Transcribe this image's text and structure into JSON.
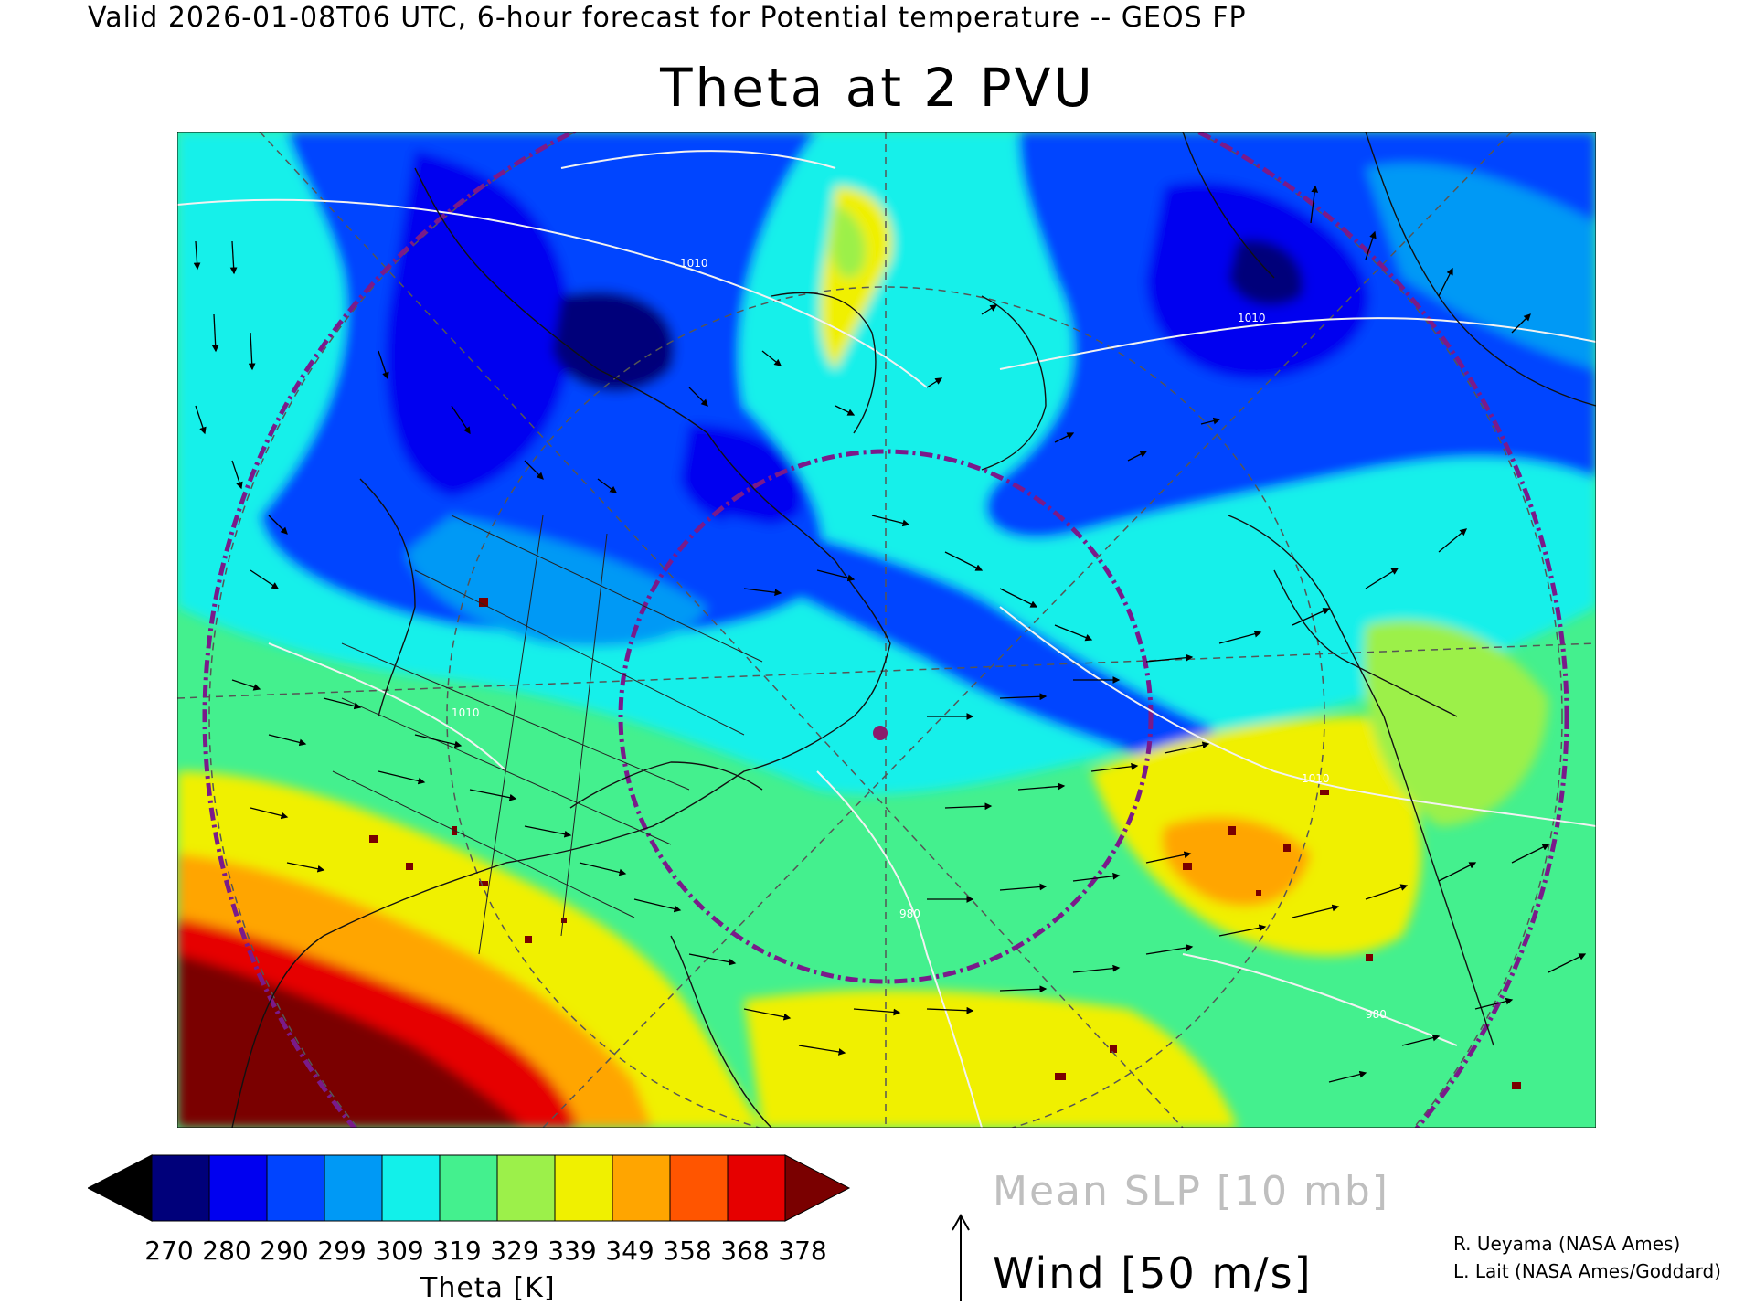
{
  "header": "Valid 2026-01-08T06 UTC, 6-hour forecast for Potential temperature -- GEOS FP",
  "title": "Theta at 2 PVU",
  "colorbar": {
    "ticks": [
      "270",
      "280",
      "290",
      "299",
      "309",
      "319",
      "329",
      "339",
      "349",
      "358",
      "368",
      "378"
    ],
    "title": "Theta [K]",
    "colors": [
      "#000000",
      "#00007a",
      "#0000f0",
      "#0044ff",
      "#0099f5",
      "#12f0ea",
      "#44f08e",
      "#9cf04a",
      "#f0f000",
      "#ffa500",
      "#ff5500",
      "#e60000",
      "#7a0000"
    ]
  },
  "legend": {
    "slp_label": "Mean SLP [10 mb]",
    "wind_label": "Wind [50 m/s]"
  },
  "credits": [
    "R. Ueyama (NASA Ames)",
    "L. Lait (NASA Ames/Goddard)"
  ],
  "map": {
    "slp_contour_labels": [
      "1010",
      "1010",
      "1010",
      "1010",
      "980",
      "980"
    ],
    "marker_color": "#8b1a6b",
    "circle_color": "#7a1a8a"
  }
}
